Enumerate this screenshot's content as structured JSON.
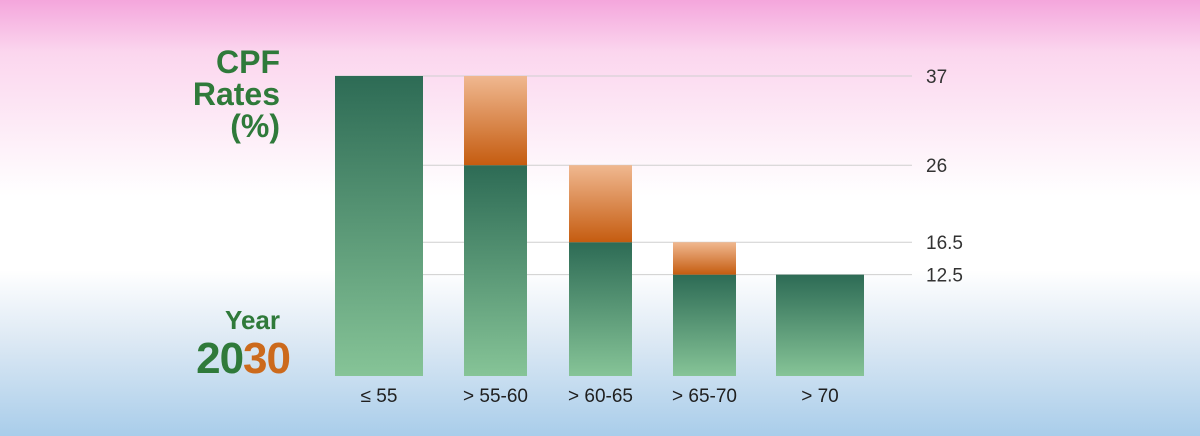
{
  "title_lines": [
    "CPF",
    "Rates",
    "(%)"
  ],
  "year_label": "Year",
  "year_part1": "20",
  "year_part2": "30",
  "colors": {
    "green_top": "#2d6b55",
    "green_bottom": "#86c497",
    "orange_top": "#f0b890",
    "orange_bottom": "#c55c10",
    "title_green": "#2f7a3a",
    "year_orange": "#cc6a1c"
  },
  "chart_data": {
    "type": "bar",
    "categories": [
      "≤ 55",
      "> 55-60",
      "> 60-65",
      "> 65-70",
      "> 70"
    ],
    "series": [
      {
        "values": [
          37,
          26,
          16.5,
          12.5,
          12.5
        ]
      },
      {
        "values": [
          0,
          11,
          9.5,
          4,
          0
        ]
      }
    ],
    "totals": [
      37,
      37,
      26,
      16.5,
      12.5
    ],
    "yticks": [
      37,
      26,
      16.5,
      12.5
    ],
    "ylim": [
      0,
      37
    ],
    "stacked": true,
    "grid": true
  }
}
